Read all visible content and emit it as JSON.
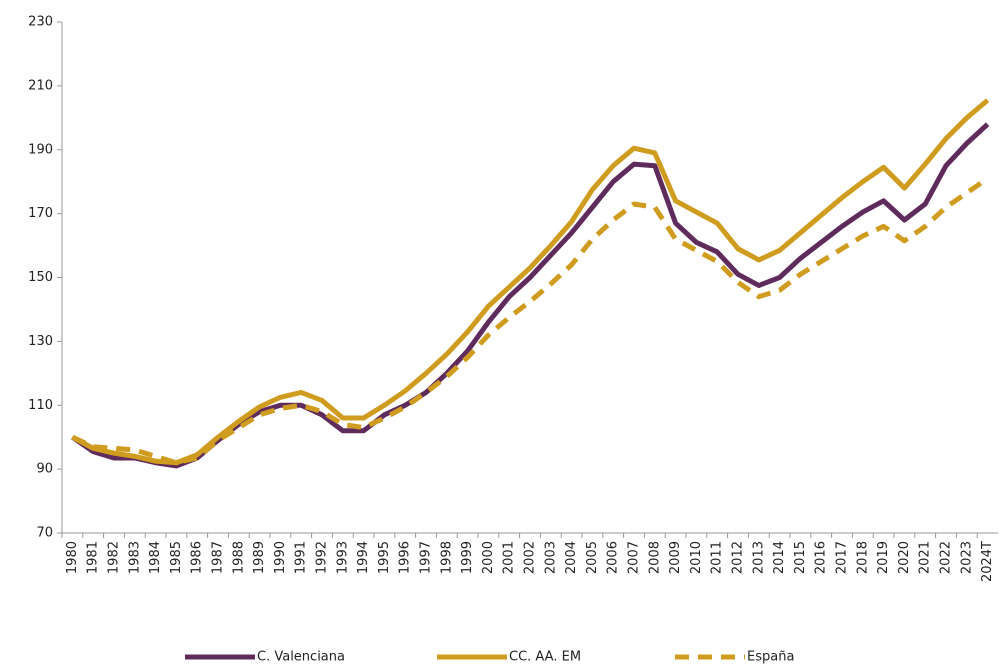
{
  "chart_data": {
    "type": "line",
    "categories": [
      "1980",
      "1981",
      "1982",
      "1983",
      "1984",
      "1985",
      "1986",
      "1987",
      "1988",
      "1989",
      "1990",
      "1991",
      "1992",
      "1993",
      "1994",
      "1995",
      "1996",
      "1997",
      "1998",
      "1999",
      "2000",
      "2001",
      "2002",
      "2003",
      "2004",
      "2005",
      "2006",
      "2007",
      "2008",
      "2009",
      "2010",
      "2011",
      "2012",
      "2013",
      "2014",
      "2015",
      "2016",
      "2017",
      "2018",
      "2019",
      "2020",
      "2021",
      "2022",
      "2023",
      "2024T"
    ],
    "series": [
      {
        "name": "C. Valenciana",
        "color": "#5e2b5c",
        "dashed": false,
        "values": [
          100,
          95.5,
          93.5,
          93.5,
          92,
          91,
          93.5,
          99,
          104,
          108,
          110,
          110,
          107,
          102,
          102,
          107,
          110,
          114,
          120,
          127,
          136,
          144,
          150,
          157,
          164,
          172,
          180,
          185.5,
          185,
          167,
          161,
          158,
          151,
          147.5,
          150,
          156,
          161,
          166,
          170.5,
          174,
          168,
          173,
          185,
          192,
          198
        ]
      },
      {
        "name": "CC. AA. EM",
        "color": "#cf9c1f",
        "dashed": false,
        "values": [
          100,
          96.5,
          95,
          94,
          92.5,
          92,
          94.5,
          100,
          105,
          109.5,
          112.5,
          114,
          111.5,
          106,
          106,
          110,
          114.5,
          120,
          126,
          133,
          141,
          147,
          153,
          160,
          167.5,
          177.5,
          185,
          190.5,
          189,
          174,
          170.5,
          167,
          159,
          155.5,
          158.5,
          164,
          169.5,
          175,
          180,
          184.5,
          178,
          185.5,
          193.5,
          200,
          205.5
        ]
      },
      {
        "name": "España",
        "color": "#cf9c1f",
        "dashed": true,
        "values": [
          100,
          97,
          96.5,
          96,
          94,
          92,
          93.5,
          99,
          103,
          107,
          109,
          110,
          108,
          104,
          103,
          106,
          109.5,
          114,
          119,
          125,
          132,
          137.5,
          142.5,
          148,
          154,
          162,
          168,
          173,
          172,
          162,
          158.5,
          155,
          148.5,
          144,
          146,
          151,
          155,
          159,
          163,
          166,
          161.5,
          166,
          172,
          176.5,
          181
        ]
      }
    ],
    "ylim": [
      70,
      230
    ],
    "yticks": [
      70,
      90,
      110,
      130,
      150,
      170,
      190,
      210,
      230
    ],
    "legend": "bottom"
  }
}
